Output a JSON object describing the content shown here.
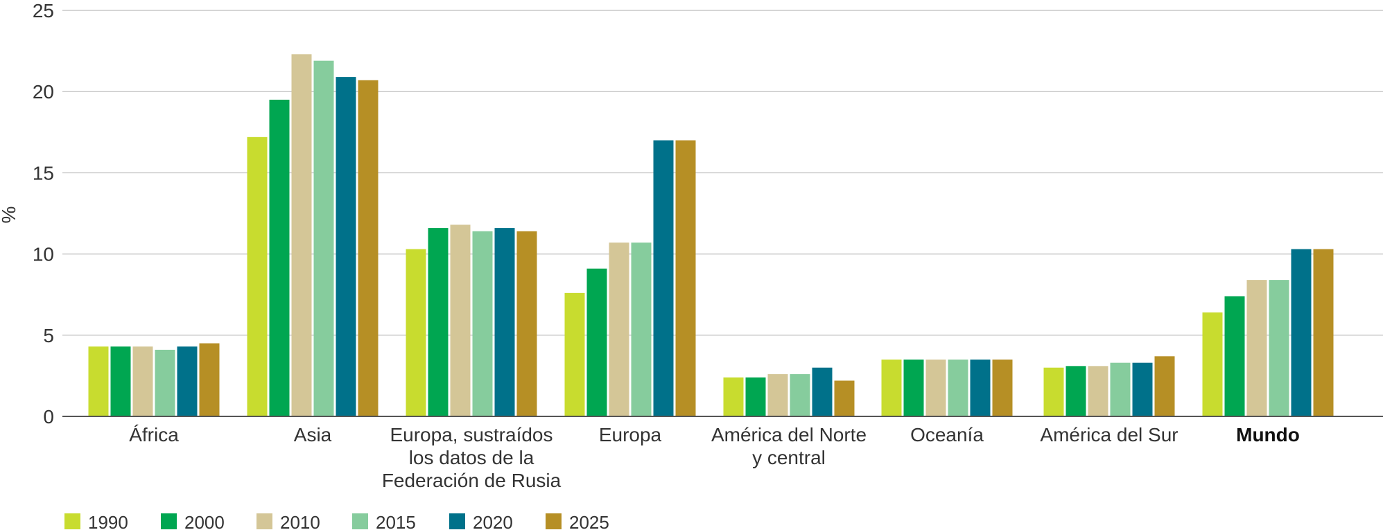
{
  "chart_data": {
    "type": "bar",
    "title": "",
    "xlabel": "",
    "ylabel": "%",
    "ylim": [
      0,
      25
    ],
    "yticks": [
      0,
      5,
      10,
      15,
      20,
      25
    ],
    "grid": true,
    "legend_position": "bottom-left",
    "categories": [
      [
        "África"
      ],
      [
        "Asia"
      ],
      [
        "Europa, sustraídos",
        "los datos de la",
        "Federación de Rusia"
      ],
      [
        "Europa"
      ],
      [
        "América del Norte",
        "y central"
      ],
      [
        "Oceanía"
      ],
      [
        "América del Sur"
      ],
      [
        "Mundo"
      ]
    ],
    "bold_categories": [
      7
    ],
    "series": [
      {
        "name": "1990",
        "color": "#c8dc2f",
        "values": [
          4.3,
          17.2,
          10.3,
          7.6,
          2.4,
          3.5,
          3.0,
          6.4
        ]
      },
      {
        "name": "2000",
        "color": "#00a651",
        "values": [
          4.3,
          19.5,
          11.6,
          9.1,
          2.4,
          3.5,
          3.1,
          7.4
        ]
      },
      {
        "name": "2010",
        "color": "#d4c697",
        "values": [
          4.3,
          22.3,
          11.8,
          10.7,
          2.6,
          3.5,
          3.1,
          8.4
        ]
      },
      {
        "name": "2015",
        "color": "#86cc9d",
        "values": [
          4.1,
          21.9,
          11.4,
          10.7,
          2.6,
          3.5,
          3.3,
          8.4
        ]
      },
      {
        "name": "2020",
        "color": "#00718a",
        "values": [
          4.3,
          20.9,
          11.6,
          17.0,
          3.0,
          3.5,
          3.3,
          10.3
        ]
      },
      {
        "name": "2025",
        "color": "#b68f25",
        "values": [
          4.5,
          20.7,
          11.4,
          17.0,
          2.2,
          3.5,
          3.7,
          10.3
        ]
      }
    ]
  }
}
